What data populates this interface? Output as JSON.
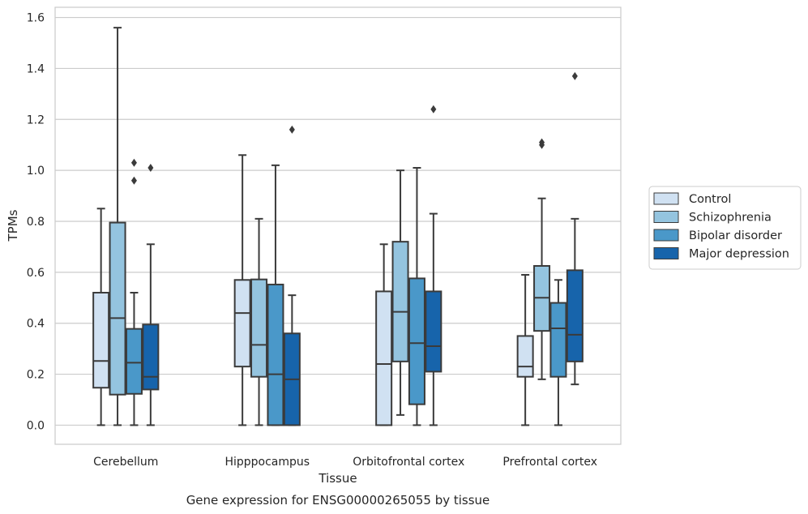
{
  "chart_data": {
    "type": "boxplot",
    "xlabel": "Tissue",
    "ylabel": "TPMs",
    "caption": "Gene expression for ENSG00000265055 by tissue",
    "ylim": [
      -0.075,
      1.64
    ],
    "yticks": [
      "0.0",
      "0.2",
      "0.4",
      "0.6",
      "0.8",
      "1.0",
      "1.2",
      "1.4",
      "1.6"
    ],
    "grid": "horizontal",
    "legend_position": "right",
    "categories": [
      "Cerebellum",
      "Hipppocampus",
      "Orbitofrontal cortex",
      "Prefrontal cortex"
    ],
    "series": [
      {
        "name": "Control",
        "color": "#d0e1f2",
        "boxes": [
          {
            "whislo": 0.0,
            "q1": 0.147,
            "med": 0.252,
            "q3": 0.52,
            "whishi": 0.85,
            "fliers": []
          },
          {
            "whislo": 0.0,
            "q1": 0.23,
            "med": 0.44,
            "q3": 0.57,
            "whishi": 1.06,
            "fliers": []
          },
          {
            "whislo": 0.0,
            "q1": 0.0,
            "med": 0.24,
            "q3": 0.525,
            "whishi": 0.71,
            "fliers": []
          },
          {
            "whislo": 0.0,
            "q1": 0.19,
            "med": 0.23,
            "q3": 0.35,
            "whishi": 0.59,
            "fliers": []
          }
        ]
      },
      {
        "name": "Schizophrenia",
        "color": "#94c4df",
        "boxes": [
          {
            "whislo": 0.0,
            "q1": 0.12,
            "med": 0.42,
            "q3": 0.795,
            "whishi": 1.56,
            "fliers": []
          },
          {
            "whislo": 0.0,
            "q1": 0.19,
            "med": 0.315,
            "q3": 0.572,
            "whishi": 0.81,
            "fliers": []
          },
          {
            "whislo": 0.04,
            "q1": 0.25,
            "med": 0.445,
            "q3": 0.72,
            "whishi": 1.0,
            "fliers": []
          },
          {
            "whislo": 0.18,
            "q1": 0.37,
            "med": 0.5,
            "q3": 0.625,
            "whishi": 0.89,
            "fliers": [
              1.1,
              1.11
            ]
          }
        ]
      },
      {
        "name": "Bipolar disorder",
        "color": "#4a98c9",
        "boxes": [
          {
            "whislo": 0.0,
            "q1": 0.123,
            "med": 0.245,
            "q3": 0.378,
            "whishi": 0.52,
            "fliers": [
              0.96,
              1.03
            ]
          },
          {
            "whislo": 0.0,
            "q1": 0.0,
            "med": 0.2,
            "q3": 0.552,
            "whishi": 1.02,
            "fliers": []
          },
          {
            "whislo": 0.0,
            "q1": 0.082,
            "med": 0.322,
            "q3": 0.576,
            "whishi": 1.01,
            "fliers": []
          },
          {
            "whislo": 0.0,
            "q1": 0.19,
            "med": 0.38,
            "q3": 0.48,
            "whishi": 0.57,
            "fliers": []
          }
        ]
      },
      {
        "name": "Major depression",
        "color": "#1764ab",
        "boxes": [
          {
            "whislo": 0.0,
            "q1": 0.14,
            "med": 0.19,
            "q3": 0.395,
            "whishi": 0.71,
            "fliers": [
              1.01
            ]
          },
          {
            "whislo": 0.0,
            "q1": 0.0,
            "med": 0.18,
            "q3": 0.36,
            "whishi": 0.51,
            "fliers": [
              1.16
            ]
          },
          {
            "whislo": 0.0,
            "q1": 0.21,
            "med": 0.31,
            "q3": 0.525,
            "whishi": 0.83,
            "fliers": [
              1.24
            ]
          },
          {
            "whislo": 0.16,
            "q1": 0.25,
            "med": 0.355,
            "q3": 0.608,
            "whishi": 0.81,
            "fliers": [
              1.37
            ]
          }
        ]
      }
    ]
  }
}
